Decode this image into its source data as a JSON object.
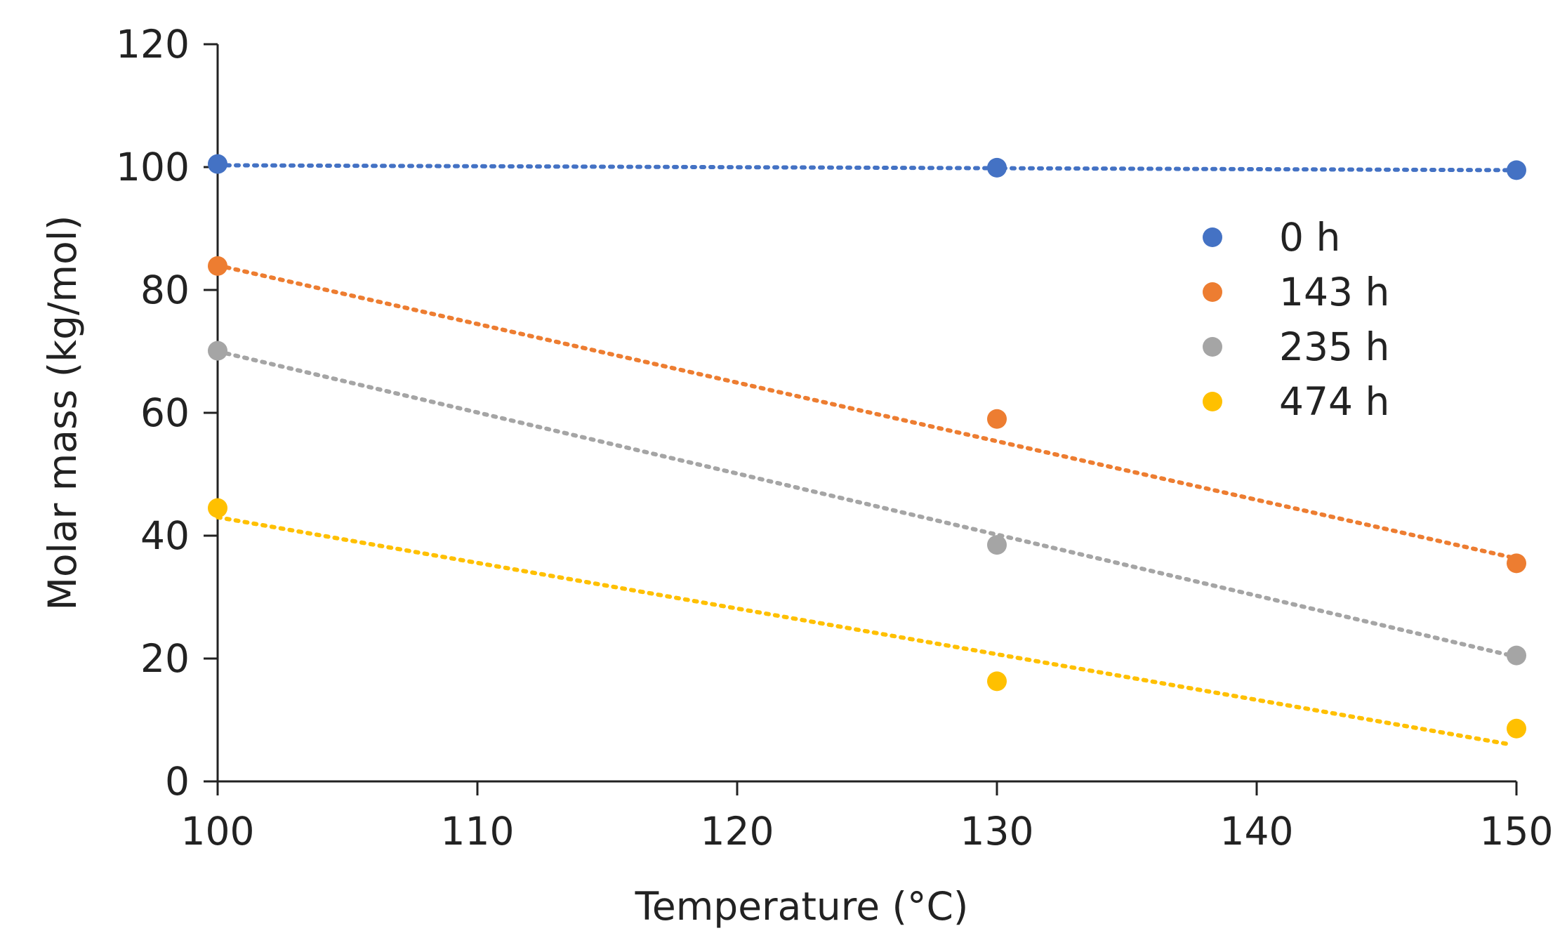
{
  "chart_data": {
    "type": "scatter",
    "title": "",
    "xlabel": "Temperature (°C)",
    "ylabel": "Molar mass (kg/mol)",
    "xlim": [
      100,
      150
    ],
    "ylim": [
      0,
      120
    ],
    "xticks": [
      100,
      110,
      120,
      130,
      140,
      150
    ],
    "yticks": [
      0,
      20,
      40,
      60,
      80,
      100,
      120
    ],
    "xtick_labels": [
      "100",
      "110",
      "120",
      "130",
      "140",
      "150"
    ],
    "ytick_labels": [
      "0",
      "20",
      "40",
      "60",
      "80",
      "100",
      "120"
    ],
    "legend_position": "right",
    "trendline": "linear, dotted",
    "series": [
      {
        "name": "0 h",
        "color": "#4472C4",
        "x": [
          100,
          130,
          150
        ],
        "y": [
          100.5,
          99.9,
          99.5
        ],
        "trend": [
          100.3,
          99.5
        ]
      },
      {
        "name": "143 h",
        "color": "#ED7D31",
        "x": [
          100,
          130,
          150
        ],
        "y": [
          83.9,
          59.0,
          35.5
        ],
        "trend": [
          84.0,
          36.5
        ]
      },
      {
        "name": "235 h",
        "color": "#A5A5A5",
        "x": [
          100,
          130,
          150
        ],
        "y": [
          70.1,
          38.5,
          20.5
        ],
        "trend": [
          70.0,
          20.5
        ]
      },
      {
        "name": "474 h",
        "color": "#FFC000",
        "x": [
          100,
          130,
          150
        ],
        "y": [
          44.5,
          16.3,
          8.6
        ],
        "trend": [
          43.0,
          6.0
        ]
      }
    ]
  }
}
